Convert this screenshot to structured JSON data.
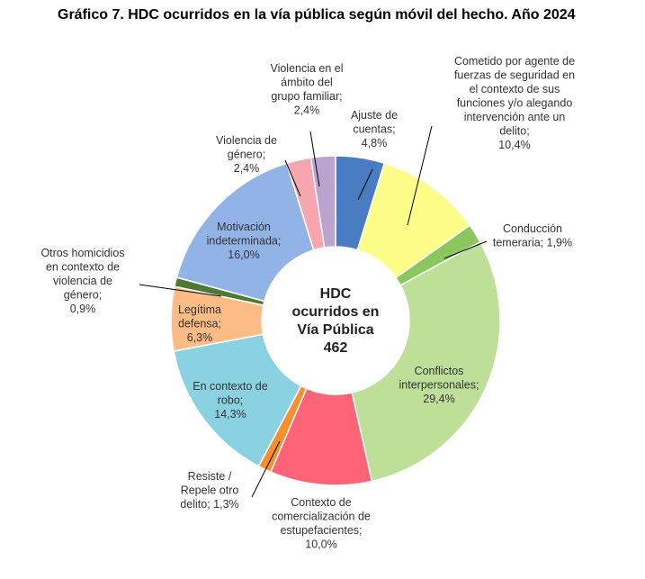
{
  "title": "Gráfico 7. HDC ocurridos en la vía pública según móvil del hecho. Año 2024",
  "chart_data": {
    "type": "pie",
    "title": "Gráfico 7. HDC ocurridos en la vía pública según móvil del hecho. Año 2024",
    "center_label": [
      "HDC",
      "ocurridos en",
      "Vía Pública",
      "462"
    ],
    "total": 462,
    "legend": "none",
    "slices": [
      {
        "name": "Ajuste de cuentas",
        "value": 4.8,
        "color": "#4a7cc2",
        "label": [
          "Ajuste de",
          "cuentas;",
          "4,8%"
        ]
      },
      {
        "name": "Cometido por agente de fuerzas de seguridad en el contexto de sus funciones y/o alegando intervención ante un delito",
        "value": 10.4,
        "color": "#fdfd8a",
        "label": [
          "Cometido por agente de",
          "fuerzas de seguridad en",
          "el contexto de sus",
          "funciones y/o alegando",
          "intervención ante un",
          "delito;",
          "10,4%"
        ]
      },
      {
        "name": "Conducción temeraria",
        "value": 1.9,
        "color": "#8cc65e",
        "label": [
          "Conducción",
          "temeraria; 1,9%"
        ]
      },
      {
        "name": "Conflictos interpersonales",
        "value": 29.4,
        "color": "#bedf98",
        "label": [
          "Conflictos",
          "interpersonales;",
          "29,4%"
        ]
      },
      {
        "name": "Contexto de comercialización de estupefacientes",
        "value": 10.0,
        "color": "#fe6475",
        "label": [
          "Contexto de",
          "comercialización de",
          "estupefacientes;",
          "10,0%"
        ]
      },
      {
        "name": "Resiste / Repele otro delito",
        "value": 1.3,
        "color": "#f5902e",
        "label": [
          "Resiste /",
          "Repele otro",
          "delito; 1,3%"
        ]
      },
      {
        "name": "En contexto de robo",
        "value": 14.3,
        "color": "#8ad1e2",
        "label": [
          "En contexto de",
          "robo;",
          "14,3%"
        ]
      },
      {
        "name": "Legítima defensa",
        "value": 6.3,
        "color": "#fdbb85",
        "label": [
          "Legítima",
          "defensa;",
          "6,3%"
        ]
      },
      {
        "name": "Otros homicidios en contexto de violencia de género",
        "value": 0.9,
        "color": "#4d7a30",
        "label": [
          "Otros homicidios",
          "en contexto de",
          "violencia de",
          "género;",
          "0,9%"
        ]
      },
      {
        "name": "Motivación indeterminada",
        "value": 16.0,
        "color": "#91b3e6",
        "label": [
          "Motivación",
          "indeterminada;",
          "16,0%"
        ]
      },
      {
        "name": "Violencia de género",
        "value": 2.4,
        "color": "#f7a6b0",
        "label": [
          "Violencia de",
          "género;",
          "2,4%"
        ]
      },
      {
        "name": "Violencia en el ámbito del grupo familiar",
        "value": 2.4,
        "color": "#bba3d0",
        "label": [
          "Violencia en el",
          "ámbito del",
          "grupo familiar;",
          "2,4%"
        ]
      }
    ]
  }
}
